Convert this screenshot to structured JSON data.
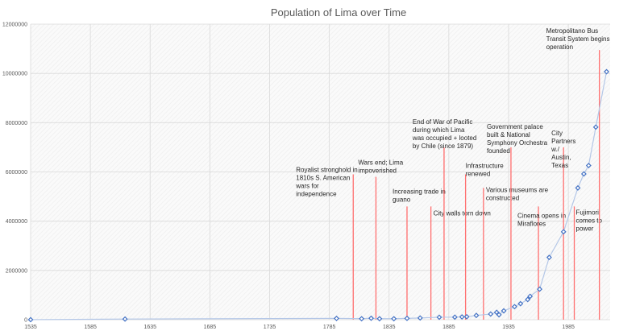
{
  "chart_data": {
    "type": "scatter",
    "title": "Population of Lima over Time",
    "xlabel": "",
    "ylabel": "",
    "xlim": [
      1535,
      2020
    ],
    "ylim": [
      0,
      12000000
    ],
    "x_ticks": [
      "1535",
      "1585",
      "1635",
      "1685",
      "1735",
      "1785",
      "1835",
      "1885",
      "1935",
      "1985"
    ],
    "y_ticks": [
      "0",
      "2000000",
      "4000000",
      "6000000",
      "8000000",
      "10000000",
      "12000000"
    ],
    "grid": true,
    "legend": "none",
    "colors": {
      "series": "#4472c4",
      "line": "#b4c7e7",
      "annotation": "#ff0000",
      "grid": "#d9d9d9",
      "title": "#595959"
    },
    "series": [
      {
        "x": [
          1535,
          1614,
          1791,
          1812,
          1820,
          1827,
          1839,
          1850,
          1861,
          1877,
          1890,
          1896,
          1900,
          1908,
          1920,
          1925,
          1927,
          1931,
          1940,
          1945,
          1951,
          1953,
          1961,
          1969,
          1981,
          1993,
          1998,
          2002,
          2008,
          2017
        ],
        "y": [
          2000,
          26000,
          52600,
          40000,
          60000,
          40000,
          40000,
          55000,
          70000,
          100000,
          104000,
          113000,
          120000,
          173000,
          230000,
          300000,
          200000,
          360000,
          530000,
          650000,
          820000,
          950000,
          1240000,
          2530000,
          3570000,
          5350000,
          5920000,
          6260000,
          7820000,
          10070000
        ]
      }
    ],
    "annotations": [
      {
        "year": 1805,
        "height": 5900000,
        "text": [
          "Royalist stronghold in",
          "1810s S. American",
          "wars for",
          "independence"
        ]
      },
      {
        "year": 1824,
        "height": 5800000,
        "text": [
          "Wars end; Lima",
          "impoverished"
        ]
      },
      {
        "year": 1850,
        "height": 4600000,
        "text": [
          "Increasing trade in",
          "guano"
        ]
      },
      {
        "year": 1870,
        "height": 4600000,
        "text": [
          "City walls torn down"
        ]
      },
      {
        "year": 1881,
        "height": 7000000,
        "text": [
          "End of War of Pacific",
          "during which Lima",
          "was occupied + looted",
          "by Chile (since 1879)"
        ]
      },
      {
        "year": 1899,
        "height": 5900000,
        "text": [
          "Infrastructure",
          "renewed"
        ]
      },
      {
        "year": 1914,
        "height": 5350000,
        "text": [
          "Various museums are",
          "constructed"
        ]
      },
      {
        "year": 1937,
        "height": 7000000,
        "text": [
          "Government palace",
          "built & National",
          "Symphony Orchestra",
          "founded"
        ]
      },
      {
        "year": 1960,
        "height": 4600000,
        "text": [
          "Cinema opens in",
          "Miraflores"
        ]
      },
      {
        "year": 1981,
        "height": 7000000,
        "text": [
          "City",
          "Partners",
          "w./",
          "Austin,",
          "Texas"
        ]
      },
      {
        "year": 1990,
        "height": 4600000,
        "text": [
          "Fujimori",
          "comes to",
          "power"
        ]
      },
      {
        "year": 2011,
        "height": 10950000,
        "text": [
          "Metropolitano Bus",
          "Transit System begins",
          "operation"
        ]
      }
    ]
  }
}
